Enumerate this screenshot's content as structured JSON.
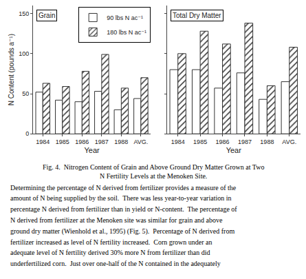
{
  "chart_data": [
    {
      "type": "bar",
      "title": "Grain",
      "xlabel": "Year",
      "ylabel": "N Content (pounds a⁻¹)",
      "categories": [
        "1984",
        "1985",
        "1986",
        "1987",
        "1988",
        "AVG."
      ],
      "series": [
        {
          "name": "90 lbs N ac⁻¹",
          "color": "#333333",
          "values": [
            52,
            42,
            40,
            53,
            30,
            44
          ]
        },
        {
          "name": "180 lbs N ac⁻¹",
          "color": "#333333",
          "values": [
            63,
            59,
            78,
            99,
            57,
            70
          ]
        }
      ],
      "ylim": [
        0,
        160
      ],
      "yticks": [
        0,
        50,
        100,
        150
      ],
      "grid": false,
      "legend": "upper right"
    },
    {
      "type": "bar",
      "title": "Total Dry Matter",
      "xlabel": "Year",
      "categories": [
        "1984",
        "1985",
        "1986",
        "1987",
        "1988",
        "AVG."
      ],
      "series": [
        {
          "name": "90 lbs N ac⁻¹",
          "color": "#333333",
          "values": [
            80,
            80,
            57,
            76,
            43,
            65
          ]
        },
        {
          "name": "180 lbs N ac⁻¹",
          "color": "#333333",
          "values": [
            100,
            128,
            112,
            138,
            60,
            108
          ]
        }
      ],
      "ylim": [
        0,
        160
      ],
      "yticks": [
        0,
        50,
        100,
        150
      ],
      "grid": false,
      "tick_labels": "x"
    }
  ],
  "caption": [
    "Fig. 4.  Nitrogen Content of Grain and Above Ground Dry Matter Grown at Two",
    "N Fertility Levels at the Menoken Site."
  ],
  "body_text": [
    "Determining the percentage of N derived from fertilizer provides a measure of the",
    "amount of N being supplied by the soil.  There was less year-to-year variation in",
    "percentage N derived from fertilizer than in yield or N-content.  The percentage of",
    "N derived from fertilizer at the Menoken site was similar for grain and above",
    "ground dry matter (Wienhold et al., 1995) (Fig. 5).  Percentage of N derived from",
    "fertilizer increased as level of N fertility increased.  Corn grown under an",
    "adequate level of N fertility derived 30% more N from fertilizer than did",
    "underfertilized corn.  Just over one-half of the N contained in the adequately"
  ]
}
